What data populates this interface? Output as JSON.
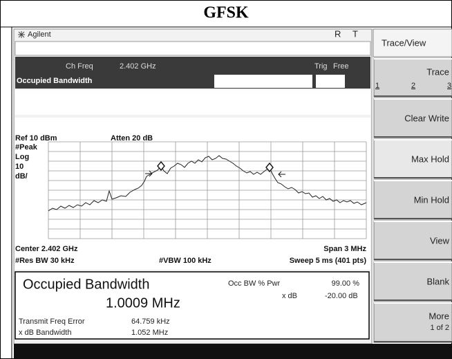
{
  "header": {
    "title": "GFSK"
  },
  "screen": {
    "brand": "Agilent",
    "status": [
      "R",
      "T"
    ],
    "ch_freq_label": "Ch Freq",
    "ch_freq": "2.402 GHz",
    "trig_label": "Trig",
    "trig": "Free",
    "mode": "Occupied Bandwidth",
    "graph": {
      "ref": "Ref 10 dBm",
      "atten": "Atten 20 dB",
      "scale": [
        "#Peak",
        "Log",
        "10",
        "dB/"
      ],
      "center": "Center 2.402 GHz",
      "span": "Span 3 MHz",
      "res_bw": "#Res BW 30 kHz",
      "vbw": "#VBW 100 kHz",
      "sweep": "Sweep 5 ms (401 pts)"
    },
    "results": {
      "title": "Occupied Bandwidth",
      "value": "1.0009 MHz",
      "occ_label": "Occ BW % Pwr",
      "occ_value": "99.00 %",
      "xdb_label": "x dB",
      "xdb_value": "-20.00 dB",
      "tfe_label": "Transmit Freq Error",
      "tfe_value": "64.759 kHz",
      "xbw_label": "x dB Bandwidth",
      "xbw_value": "1.052 MHz"
    }
  },
  "softkeys": {
    "title": "Trace/View",
    "trace": {
      "label": "Trace",
      "options": [
        "1",
        "2",
        "3"
      ]
    },
    "keys": [
      "Clear Write",
      "Max Hold",
      "Min Hold",
      "View",
      "Blank"
    ],
    "more": {
      "label": "More",
      "page": "1 of 2"
    }
  }
}
